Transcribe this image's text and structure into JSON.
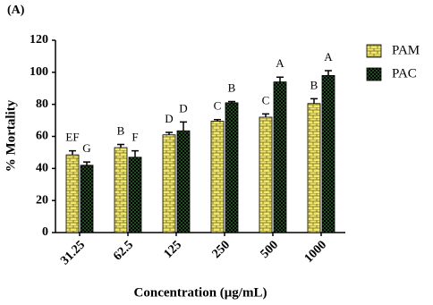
{
  "chart_data": {
    "type": "bar",
    "panel_label": "(A)",
    "x_label": "Concentration (μg/mL)",
    "y_label": "% Mortality",
    "categories": [
      "31.25",
      "62.5",
      "125",
      "250",
      "500",
      "1000"
    ],
    "series": [
      {
        "name": "PAM",
        "color": "#f2e86a",
        "values": [
          48.5,
          53,
          61,
          69.5,
          72,
          80.5
        ],
        "errors": [
          2.5,
          2,
          1.5,
          1,
          2,
          3
        ],
        "letters": [
          "EF",
          "B",
          "D",
          "C",
          "C",
          "B"
        ]
      },
      {
        "name": "PAC",
        "color": "#1f4d1f",
        "values": [
          42,
          47,
          63.5,
          81,
          94,
          98
        ],
        "errors": [
          2,
          4,
          5.5,
          0.8,
          3,
          3
        ],
        "letters": [
          "G",
          "F",
          "D",
          "B",
          "A",
          "A"
        ]
      }
    ],
    "ylim": [
      0,
      120
    ],
    "yticks": [
      0,
      20,
      40,
      60,
      80,
      100,
      120
    ],
    "grid": false,
    "legend": "right"
  }
}
